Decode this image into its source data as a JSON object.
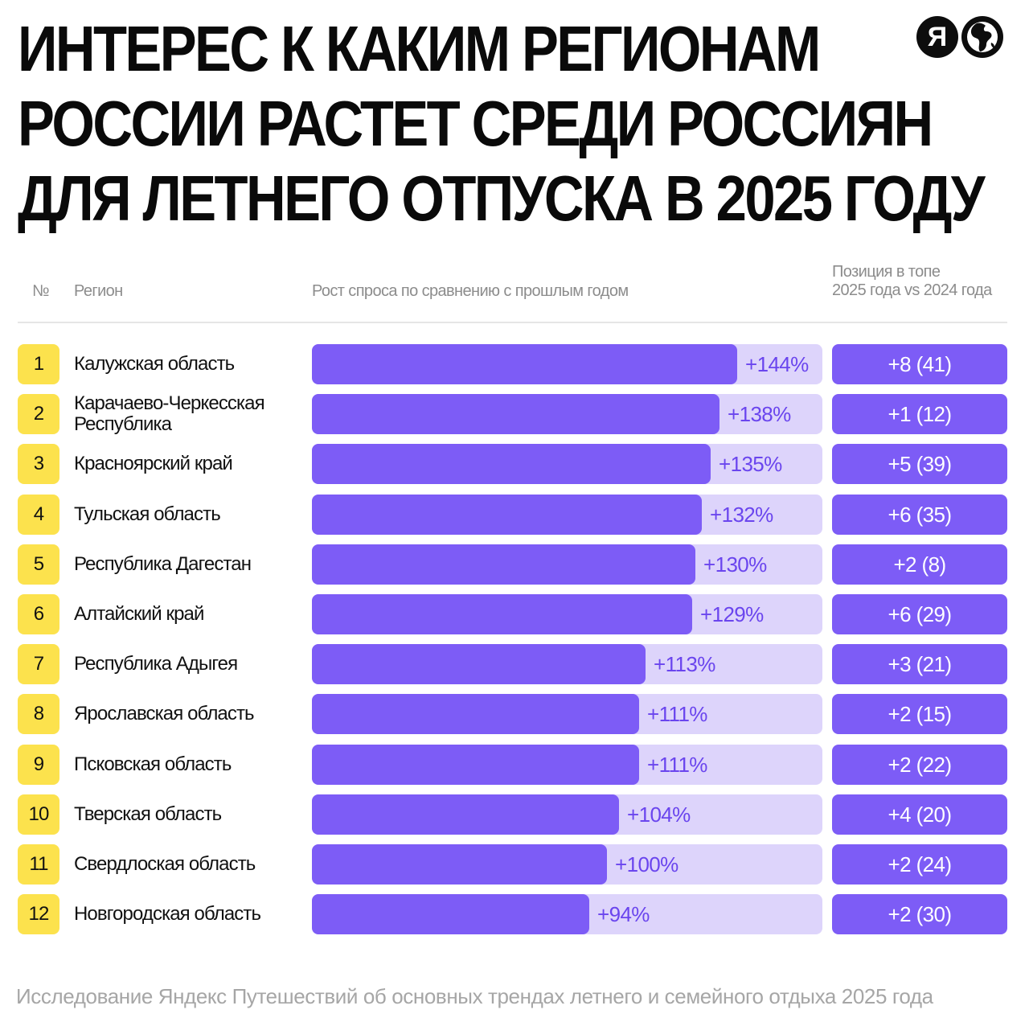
{
  "title_lines": [
    "ИНТЕРЕС К КАКИМ РЕГИОНАМ",
    "РОССИИ РАСТЕТ СРЕДИ РОССИЯН",
    "ДЛЯ ЛЕТНЕГО ОТПУСКА В 2025 ГОДУ"
  ],
  "logos": {
    "yandex_letter": "Я",
    "icons": [
      "yandex-logo-icon",
      "globe-icon"
    ]
  },
  "columns": {
    "num": "№",
    "region": "Регион",
    "growth": "Рост спроса по сравнению с прошлым годом",
    "position_line1": "Позиция в топе",
    "position_line2": "2025 года vs 2024 года"
  },
  "colors": {
    "rank_badge": "#fce24d",
    "bar_fill": "#7d5cf6",
    "bar_track": "#ddd4fb",
    "value_text": "#6a45ee"
  },
  "chart_data": {
    "type": "bar",
    "orientation": "horizontal",
    "xlim": [
      0,
      173
    ],
    "ranks": [
      "1",
      "2",
      "3",
      "4",
      "5",
      "6",
      "7",
      "8",
      "9",
      "10",
      "11",
      "12"
    ],
    "categories": [
      "Калужская область",
      "Карачаево-Черкесская Республика",
      "Красноярский край",
      "Тульская область",
      "Республика Дагестан",
      "Алтайский край",
      "Республика Адыгея",
      "Ярославская область",
      "Псковская область",
      "Тверская область",
      "Свердлоская область",
      "Новгородская область"
    ],
    "values": [
      144,
      138,
      135,
      132,
      130,
      129,
      113,
      111,
      111,
      104,
      100,
      94
    ],
    "value_labels": [
      "+144%",
      "+138%",
      "+135%",
      "+132%",
      "+130%",
      "+129%",
      "+113%",
      "+111%",
      "+111%",
      "+104%",
      "+100%",
      "+94%"
    ],
    "position_change": [
      "+8 (41)",
      "+1 (12)",
      "+5 (39)",
      "+6 (35)",
      "+2 (8)",
      "+6 (29)",
      "+3 (21)",
      "+2 (15)",
      "+2 (22)",
      "+4 (20)",
      "+2 (24)",
      "+2 (30)"
    ]
  },
  "footer": "Исследование Яндекс Путешествий об основных трендах летнего и семейного отдыха 2025 года"
}
